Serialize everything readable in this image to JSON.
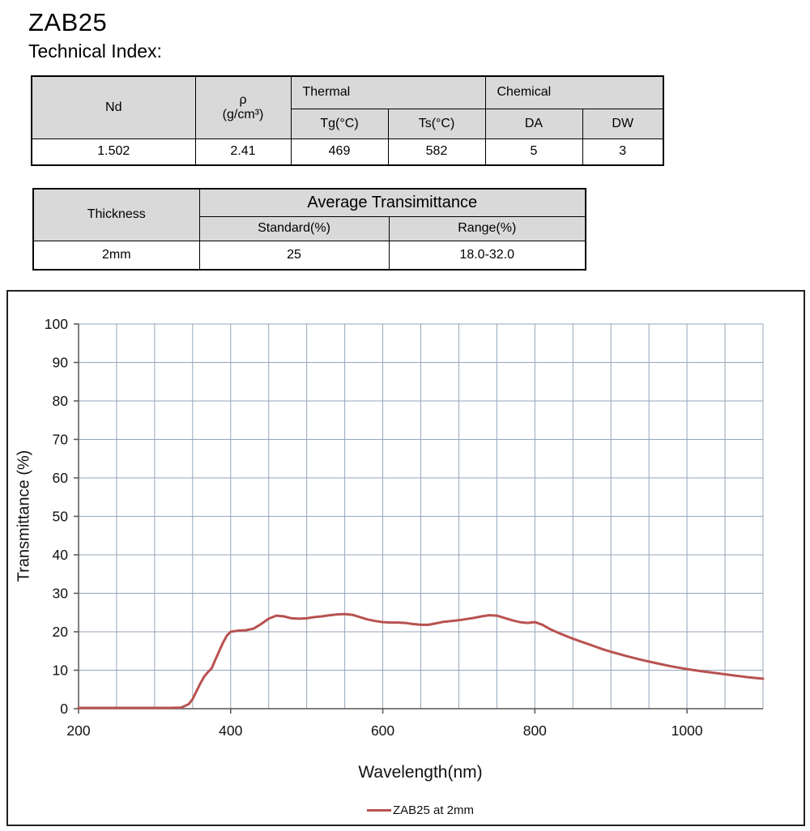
{
  "header": {
    "title": "ZAB25",
    "subtitle": "Technical Index:"
  },
  "table1": {
    "headers": {
      "nd": "Nd",
      "rho_symbol": "ρ",
      "rho_unit": "(g/cm³)",
      "thermal": "Thermal",
      "tg": "Tg(°C)",
      "ts": "Ts(°C)",
      "chemical": "Chemical",
      "da": "DA",
      "dw": "DW"
    },
    "values": {
      "nd": "1.502",
      "rho": "2.41",
      "tg": "469",
      "ts": "582",
      "da": "5",
      "dw": "3"
    }
  },
  "table2": {
    "headers": {
      "thickness": "Thickness",
      "avg_transmittance": "Average Transimittance",
      "standard": "Standard(%)",
      "range": "Range(%)"
    },
    "values": {
      "thickness": "2mm",
      "standard": "25",
      "range": "18.0-32.0"
    }
  },
  "chart_data": {
    "type": "line",
    "title": "",
    "xlabel": "Wavelength(nm)",
    "ylabel": "Transmittance (%)",
    "xlim": [
      200,
      1100
    ],
    "ylim": [
      0,
      100
    ],
    "x_tick_labels": [
      200,
      400,
      600,
      800,
      1000
    ],
    "x_grid_step": 50,
    "y_grid_step": 10,
    "y_tick_step": 10,
    "grid": true,
    "grid_color": "#94a6bb",
    "axis_color": "#555555",
    "legend_position": "bottom",
    "series": [
      {
        "name": "ZAB25 at 2mm",
        "color": "#b9524f",
        "points": [
          [
            200,
            0.2
          ],
          [
            240,
            0.2
          ],
          [
            280,
            0.2
          ],
          [
            320,
            0.2
          ],
          [
            335,
            0.3
          ],
          [
            345,
            1.2
          ],
          [
            350,
            2.5
          ],
          [
            355,
            4.5
          ],
          [
            360,
            6.5
          ],
          [
            365,
            8.3
          ],
          [
            370,
            9.5
          ],
          [
            375,
            10.5
          ],
          [
            380,
            12.8
          ],
          [
            385,
            15.0
          ],
          [
            390,
            17.2
          ],
          [
            395,
            19.0
          ],
          [
            400,
            20.0
          ],
          [
            410,
            20.3
          ],
          [
            420,
            20.4
          ],
          [
            430,
            20.8
          ],
          [
            440,
            22.0
          ],
          [
            450,
            23.4
          ],
          [
            460,
            24.2
          ],
          [
            470,
            24.0
          ],
          [
            480,
            23.5
          ],
          [
            490,
            23.4
          ],
          [
            500,
            23.5
          ],
          [
            510,
            23.8
          ],
          [
            520,
            24.0
          ],
          [
            530,
            24.3
          ],
          [
            540,
            24.5
          ],
          [
            550,
            24.6
          ],
          [
            560,
            24.4
          ],
          [
            570,
            23.8
          ],
          [
            580,
            23.2
          ],
          [
            590,
            22.8
          ],
          [
            600,
            22.5
          ],
          [
            610,
            22.4
          ],
          [
            620,
            22.4
          ],
          [
            630,
            22.3
          ],
          [
            640,
            22.0
          ],
          [
            650,
            21.8
          ],
          [
            660,
            21.8
          ],
          [
            670,
            22.2
          ],
          [
            680,
            22.6
          ],
          [
            690,
            22.8
          ],
          [
            700,
            23.0
          ],
          [
            710,
            23.3
          ],
          [
            720,
            23.6
          ],
          [
            730,
            24.0
          ],
          [
            740,
            24.3
          ],
          [
            750,
            24.2
          ],
          [
            760,
            23.6
          ],
          [
            770,
            23.0
          ],
          [
            780,
            22.5
          ],
          [
            790,
            22.3
          ],
          [
            800,
            22.5
          ],
          [
            810,
            21.8
          ],
          [
            820,
            20.7
          ],
          [
            830,
            19.8
          ],
          [
            840,
            19.0
          ],
          [
            850,
            18.2
          ],
          [
            860,
            17.5
          ],
          [
            870,
            16.8
          ],
          [
            880,
            16.1
          ],
          [
            890,
            15.4
          ],
          [
            900,
            14.8
          ],
          [
            920,
            13.7
          ],
          [
            940,
            12.7
          ],
          [
            960,
            11.8
          ],
          [
            980,
            11.0
          ],
          [
            1000,
            10.3
          ],
          [
            1020,
            9.7
          ],
          [
            1040,
            9.2
          ],
          [
            1060,
            8.7
          ],
          [
            1080,
            8.2
          ],
          [
            1100,
            7.8
          ]
        ]
      }
    ]
  }
}
